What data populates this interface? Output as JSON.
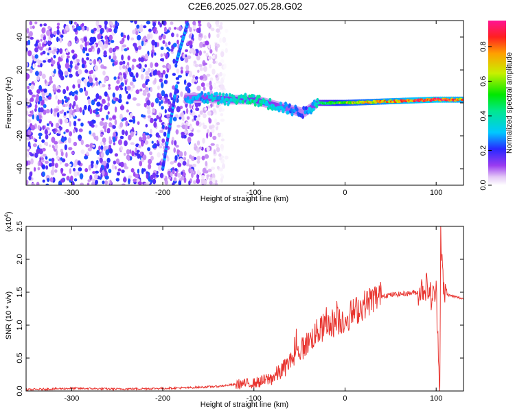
{
  "title": "C2E6.2025.027.05.28.G02",
  "chart_data": [
    {
      "type": "heatmap",
      "xlabel": "Height of straight line (km)",
      "ylabel": "Frequency (Hz)",
      "xlim": [
        -350,
        130
      ],
      "ylim": [
        -50,
        50
      ],
      "xticks": [
        -300,
        -200,
        -100,
        0,
        100
      ],
      "yticks": [
        -40,
        -20,
        0,
        20,
        40
      ],
      "colorbar": {
        "label": "Normalized spectral amplitude",
        "range": [
          0,
          0.95
        ],
        "ticks": [
          0.0,
          0.2,
          0.4,
          0.6,
          0.8
        ]
      },
      "features": {
        "noise_region_x": [
          -350,
          -145
        ],
        "doppler_track": {
          "x": [
            -175,
            -150,
            -125,
            -100,
            -80,
            -60,
            -45,
            -30,
            0,
            50,
            100,
            130
          ],
          "y": [
            3,
            3,
            2,
            2,
            -1,
            -4,
            -6,
            0,
            0,
            1,
            2,
            2
          ],
          "amplitude": [
            0.3,
            0.35,
            0.4,
            0.45,
            0.4,
            0.3,
            0.25,
            0.45,
            0.7,
            0.85,
            0.95,
            0.85
          ]
        },
        "diagonal_streaks": [
          {
            "x": [
              -200,
              -185
            ],
            "y": [
              -40,
              10
            ]
          },
          {
            "x": [
              -185,
              -173
            ],
            "y": [
              25,
              48
            ]
          }
        ]
      }
    },
    {
      "type": "line",
      "xlabel": "Height of straight line (km)",
      "ylabel": "SNR (10 * v/v)",
      "yscale_label": "(x10",
      "yscale_exp": "4",
      "yscale_close": ")",
      "xlim": [
        -350,
        130
      ],
      "ylim": [
        0,
        2.5
      ],
      "xticks": [
        -300,
        -200,
        -100,
        0,
        100
      ],
      "yticks": [
        "0.0",
        "0.5",
        "1.0",
        "1.5",
        "2.0",
        "2.5"
      ],
      "color": "#e8342f",
      "series": [
        {
          "x": [
            -350,
            -300,
            -250,
            -200,
            -170,
            -140,
            -120,
            -100,
            -90,
            -80,
            -70,
            -60,
            -50,
            -40,
            -30,
            -20,
            -10,
            0,
            10,
            20,
            30,
            40,
            60,
            80,
            90,
            95,
            100,
            104,
            105,
            108,
            115,
            130
          ],
          "y": [
            0.02,
            0.04,
            0.03,
            0.04,
            0.05,
            0.07,
            0.1,
            0.12,
            0.15,
            0.2,
            0.3,
            0.45,
            0.6,
            0.75,
            0.9,
            1.0,
            1.05,
            1.1,
            1.2,
            1.3,
            1.4,
            1.45,
            1.47,
            1.5,
            1.6,
            1.4,
            1.5,
            0.1,
            2.45,
            1.5,
            1.45,
            1.4
          ]
        }
      ]
    }
  ]
}
